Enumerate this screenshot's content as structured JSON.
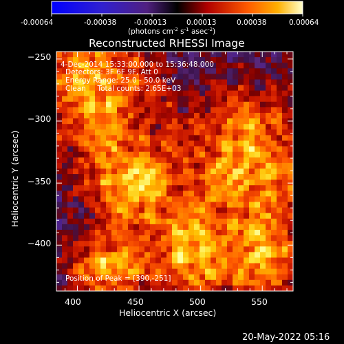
{
  "colorbar": {
    "tick_labels": [
      "-0.00064",
      "-0.00038",
      "-0.00013",
      "0.00013",
      "0.00038",
      "0.00064"
    ],
    "units": "(photons cm",
    "units_full": [
      "(photons cm",
      "-2",
      " s",
      "-1",
      " asec",
      "-2",
      ")"
    ]
  },
  "chart_data": {
    "type": "heatmap",
    "title": "Reconstructed RHESSI Image",
    "xlabel": "Heliocentric X (arcsec)",
    "ylabel": "Heliocentric Y (arcsec)",
    "xlim": [
      383,
      575
    ],
    "ylim": [
      -437,
      -244
    ],
    "x_ticks": [
      400,
      450,
      500,
      550
    ],
    "y_ticks": [
      -250,
      -300,
      -350,
      -400
    ],
    "value_range": [
      -0.00064,
      0.00064
    ],
    "peak_position": [
      390,
      -251
    ],
    "colors": {
      "low": "#1010ff",
      "mid_low": "#5a2a9a",
      "zero": "#000000",
      "mid": "#c01010",
      "high": "#ff8a00",
      "top": "#ffff60"
    },
    "annotations": [
      "4-Dec-2014 15:33:00.000 to 15:36:48.000",
      "Detectors: 3F 6F 9F, Att 0",
      "Energy Range: 25.0 - 50.0 keV",
      "Clean     Total counts: 2.65E+03",
      "Position of Peak = [390,-251]"
    ]
  },
  "footer": {
    "timestamp": "20-May-2022 05:16"
  }
}
